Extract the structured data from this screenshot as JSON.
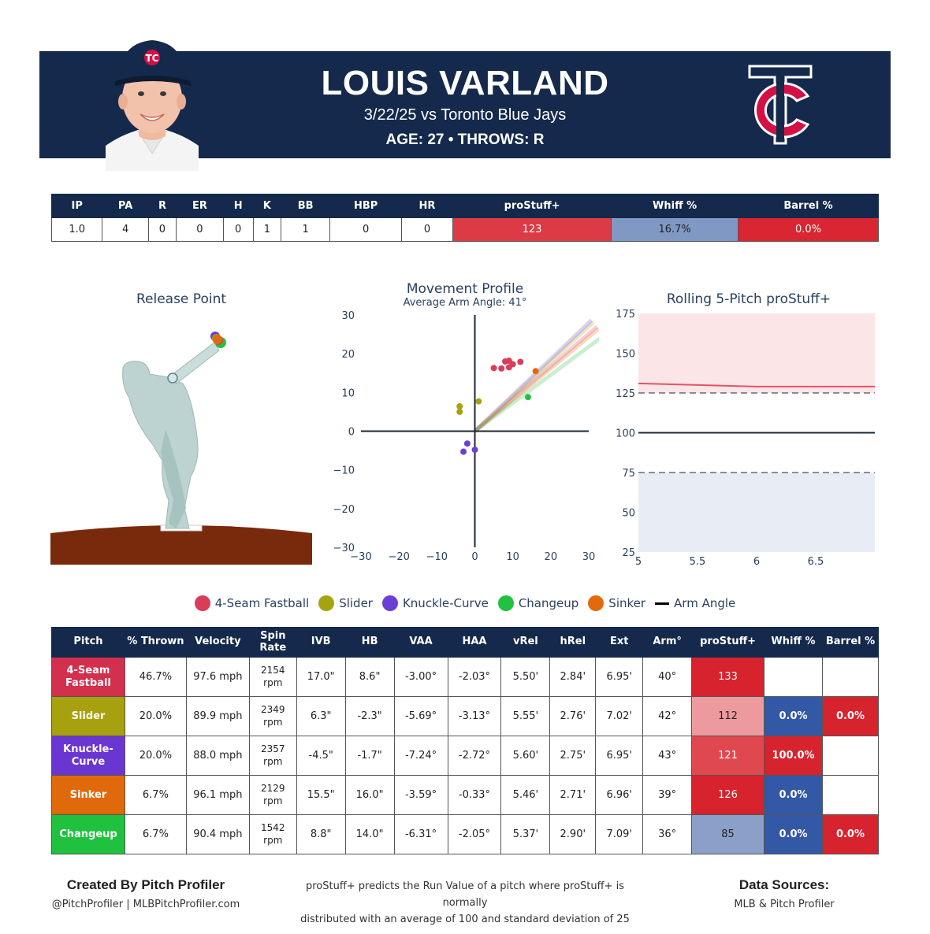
{
  "header": {
    "name": "LOUIS VARLAND",
    "game": "3/22/25 vs Toronto Blue Jays",
    "meta": "AGE: 27 • THROWS: R",
    "bg_color": "#14294b"
  },
  "summary": {
    "headers": [
      "IP",
      "PA",
      "R",
      "ER",
      "H",
      "K",
      "BB",
      "HBP",
      "HR",
      "proStuff+",
      "Whiff %",
      "Barrel %"
    ],
    "values": [
      "1.0",
      "4",
      "0",
      "0",
      "0",
      "1",
      "1",
      "0",
      "0",
      "123",
      "16.7%",
      "0.0%"
    ],
    "cell_colors": [
      "",
      "",
      "",
      "",
      "",
      "",
      "",
      "",
      "",
      "#dc3b45",
      "#7f98c4",
      "#d92632"
    ]
  },
  "release_point": {
    "title": "Release Point"
  },
  "movement": {
    "title": "Movement Profile",
    "subtitle": "Average Arm Angle: 41°"
  },
  "rolling": {
    "title": "Rolling 5-Pitch proStuff+"
  },
  "legend": [
    {
      "label": "4-Seam Fastball",
      "color": "#d93d5a"
    },
    {
      "label": "Slider",
      "color": "#a5a311"
    },
    {
      "label": "Knuckle-Curve",
      "color": "#6c3fd4"
    },
    {
      "label": "Changeup",
      "color": "#22c142"
    },
    {
      "label": "Sinker",
      "color": "#e26a0b"
    },
    {
      "label": "Arm Angle",
      "color": "#000000",
      "line": true
    }
  ],
  "pitch_table": {
    "headers": [
      "Pitch",
      "% Thrown",
      "Velocity",
      "Spin Rate",
      "IVB",
      "HB",
      "VAA",
      "HAA",
      "vRel",
      "hRel",
      "Ext",
      "Arm°",
      "proStuff+",
      "Whiff %",
      "Barrel %"
    ],
    "rows": [
      {
        "pitch": "4-Seam Fastball",
        "color": "#d3304e",
        "thrown": "46.7%",
        "velo": "97.6 mph",
        "spin": "2154 rpm",
        "ivb": "17.0\"",
        "hb": "8.6\"",
        "vaa": "-3.00°",
        "haa": "-2.03°",
        "vrel": "5.50'",
        "hrel": "2.84'",
        "ext": "6.95'",
        "arm": "40°",
        "stuff": "133",
        "whiff": "",
        "barrel": "",
        "stuff_color": "#d7232e",
        "whiff_color": "#ffffff",
        "barrel_color": "#ffffff"
      },
      {
        "pitch": "Slider",
        "color": "#a7a00f",
        "thrown": "20.0%",
        "velo": "89.9 mph",
        "spin": "2349 rpm",
        "ivb": "6.3\"",
        "hb": "-2.3\"",
        "vaa": "-5.69°",
        "haa": "-3.13°",
        "vrel": "5.55'",
        "hrel": "2.76'",
        "ext": "7.02'",
        "arm": "42°",
        "stuff": "112",
        "whiff": "0.0%",
        "barrel": "0.0%",
        "stuff_color": "#ec9a9d",
        "whiff_color": "#3358a5",
        "barrel_color": "#d7232e"
      },
      {
        "pitch": "Knuckle-Curve",
        "color": "#6a36d2",
        "thrown": "20.0%",
        "velo": "88.0 mph",
        "spin": "2357 rpm",
        "ivb": "-4.5\"",
        "hb": "-1.7\"",
        "vaa": "-7.24°",
        "haa": "-2.72°",
        "vrel": "5.60'",
        "hrel": "2.75'",
        "ext": "6.95'",
        "arm": "43°",
        "stuff": "121",
        "whiff": "100.0%",
        "barrel": "",
        "stuff_color": "#e04850",
        "whiff_color": "#d7232e",
        "barrel_color": "#ffffff"
      },
      {
        "pitch": "Sinker",
        "color": "#e0690b",
        "thrown": "6.7%",
        "velo": "96.1 mph",
        "spin": "2129 rpm",
        "ivb": "15.5\"",
        "hb": "16.0\"",
        "vaa": "-3.59°",
        "haa": "-0.33°",
        "vrel": "5.46'",
        "hrel": "2.71'",
        "ext": "6.96'",
        "arm": "39°",
        "stuff": "126",
        "whiff": "0.0%",
        "barrel": "",
        "stuff_color": "#d7232e",
        "whiff_color": "#3358a5",
        "barrel_color": "#ffffff"
      },
      {
        "pitch": "Changeup",
        "color": "#21c140",
        "thrown": "6.7%",
        "velo": "90.4 mph",
        "spin": "1542 rpm",
        "ivb": "8.8\"",
        "hb": "14.0\"",
        "vaa": "-6.31°",
        "haa": "-2.05°",
        "vrel": "5.37'",
        "hrel": "2.90'",
        "ext": "7.09'",
        "arm": "36°",
        "stuff": "85",
        "whiff": "0.0%",
        "barrel": "0.0%",
        "stuff_color": "#8aa0c8",
        "whiff_color": "#3358a5",
        "barrel_color": "#d7232e"
      }
    ]
  },
  "footer": {
    "created_by": "Created By Pitch Profiler",
    "handles": "@PitchProfiler | MLBPitchProfiler.com",
    "note_line1": "proStuff+ predicts the Run Value of a pitch where proStuff+ is normally",
    "note_line2": "distributed with an average of 100 and standard deviation of 25",
    "sources_title": "Data Sources:",
    "sources": "MLB & Pitch Profiler"
  },
  "chart_data": [
    {
      "type": "scatter",
      "title": "Release Point",
      "series": [
        {
          "name": "4-Seam Fastball",
          "color": "#d93d5a"
        },
        {
          "name": "Knuckle-Curve",
          "color": "#6c3fd4"
        },
        {
          "name": "Slider",
          "color": "#a5a311"
        },
        {
          "name": "Sinker",
          "color": "#e26a0b"
        },
        {
          "name": "Changeup",
          "color": "#22c142"
        }
      ]
    },
    {
      "type": "scatter",
      "title": "Movement Profile",
      "subtitle": "Average Arm Angle: 41°",
      "xlim": [
        -30,
        30
      ],
      "ylim": [
        -30,
        30
      ],
      "xticks": [
        "−30",
        "−20",
        "−10",
        "0",
        "10",
        "20",
        "30"
      ],
      "yticks": [
        "30",
        "20",
        "10",
        "0",
        "−10",
        "−20",
        "−30"
      ],
      "series": [
        {
          "name": "4-Seam Fastball",
          "color": "#d93d5a",
          "points": [
            [
              5,
              16.3
            ],
            [
              7,
              16.2
            ],
            [
              8,
              18
            ],
            [
              9,
              18.2
            ],
            [
              9,
              16.5
            ],
            [
              10,
              17.3
            ],
            [
              12,
              17.9
            ]
          ]
        },
        {
          "name": "Slider",
          "color": "#a5a311",
          "points": [
            [
              -4,
              6.4
            ],
            [
              -4,
              5
            ],
            [
              1,
              7.7
            ]
          ]
        },
        {
          "name": "Knuckle-Curve",
          "color": "#6c3fd4",
          "points": [
            [
              -3,
              -5.3
            ],
            [
              -2,
              -3.2
            ],
            [
              0,
              -4.8
            ]
          ]
        },
        {
          "name": "Changeup",
          "color": "#22c142",
          "points": [
            [
              14,
              8.8
            ]
          ]
        },
        {
          "name": "Sinker",
          "color": "#e26a0b",
          "points": [
            [
              16,
              15.5
            ]
          ]
        }
      ],
      "arm_angles": [
        {
          "name": "4-Seam Fastball",
          "color": "#d93d5a",
          "deg": 40
        },
        {
          "name": "Slider",
          "color": "#a5a311",
          "deg": 42
        },
        {
          "name": "Knuckle-Curve",
          "color": "#6c3fd4",
          "deg": 43
        },
        {
          "name": "Sinker",
          "color": "#e26a0b",
          "deg": 39
        },
        {
          "name": "Changeup",
          "color": "#22c142",
          "deg": 36
        }
      ]
    },
    {
      "type": "line",
      "title": "Rolling 5-Pitch proStuff+",
      "xlim": [
        5,
        7
      ],
      "ylim": [
        25,
        175
      ],
      "xticks": [
        5,
        5.5,
        6,
        6.5
      ],
      "yticks": [
        25,
        50,
        75,
        100,
        125,
        150,
        175
      ],
      "reference_lines": [
        {
          "y": 100,
          "style": "solid"
        },
        {
          "y": 125,
          "style": "dashed"
        },
        {
          "y": 75,
          "style": "dashed"
        }
      ],
      "bands": [
        {
          "from": 125,
          "to": 175,
          "color": "#fbe5e7"
        },
        {
          "from": 25,
          "to": 75,
          "color": "#e8edf5"
        }
      ],
      "series": [
        {
          "color": "#e05566",
          "x": [
            5,
            5.5,
            6,
            6.5,
            7
          ],
          "values": [
            131,
            130,
            129,
            129,
            129
          ]
        }
      ]
    }
  ]
}
